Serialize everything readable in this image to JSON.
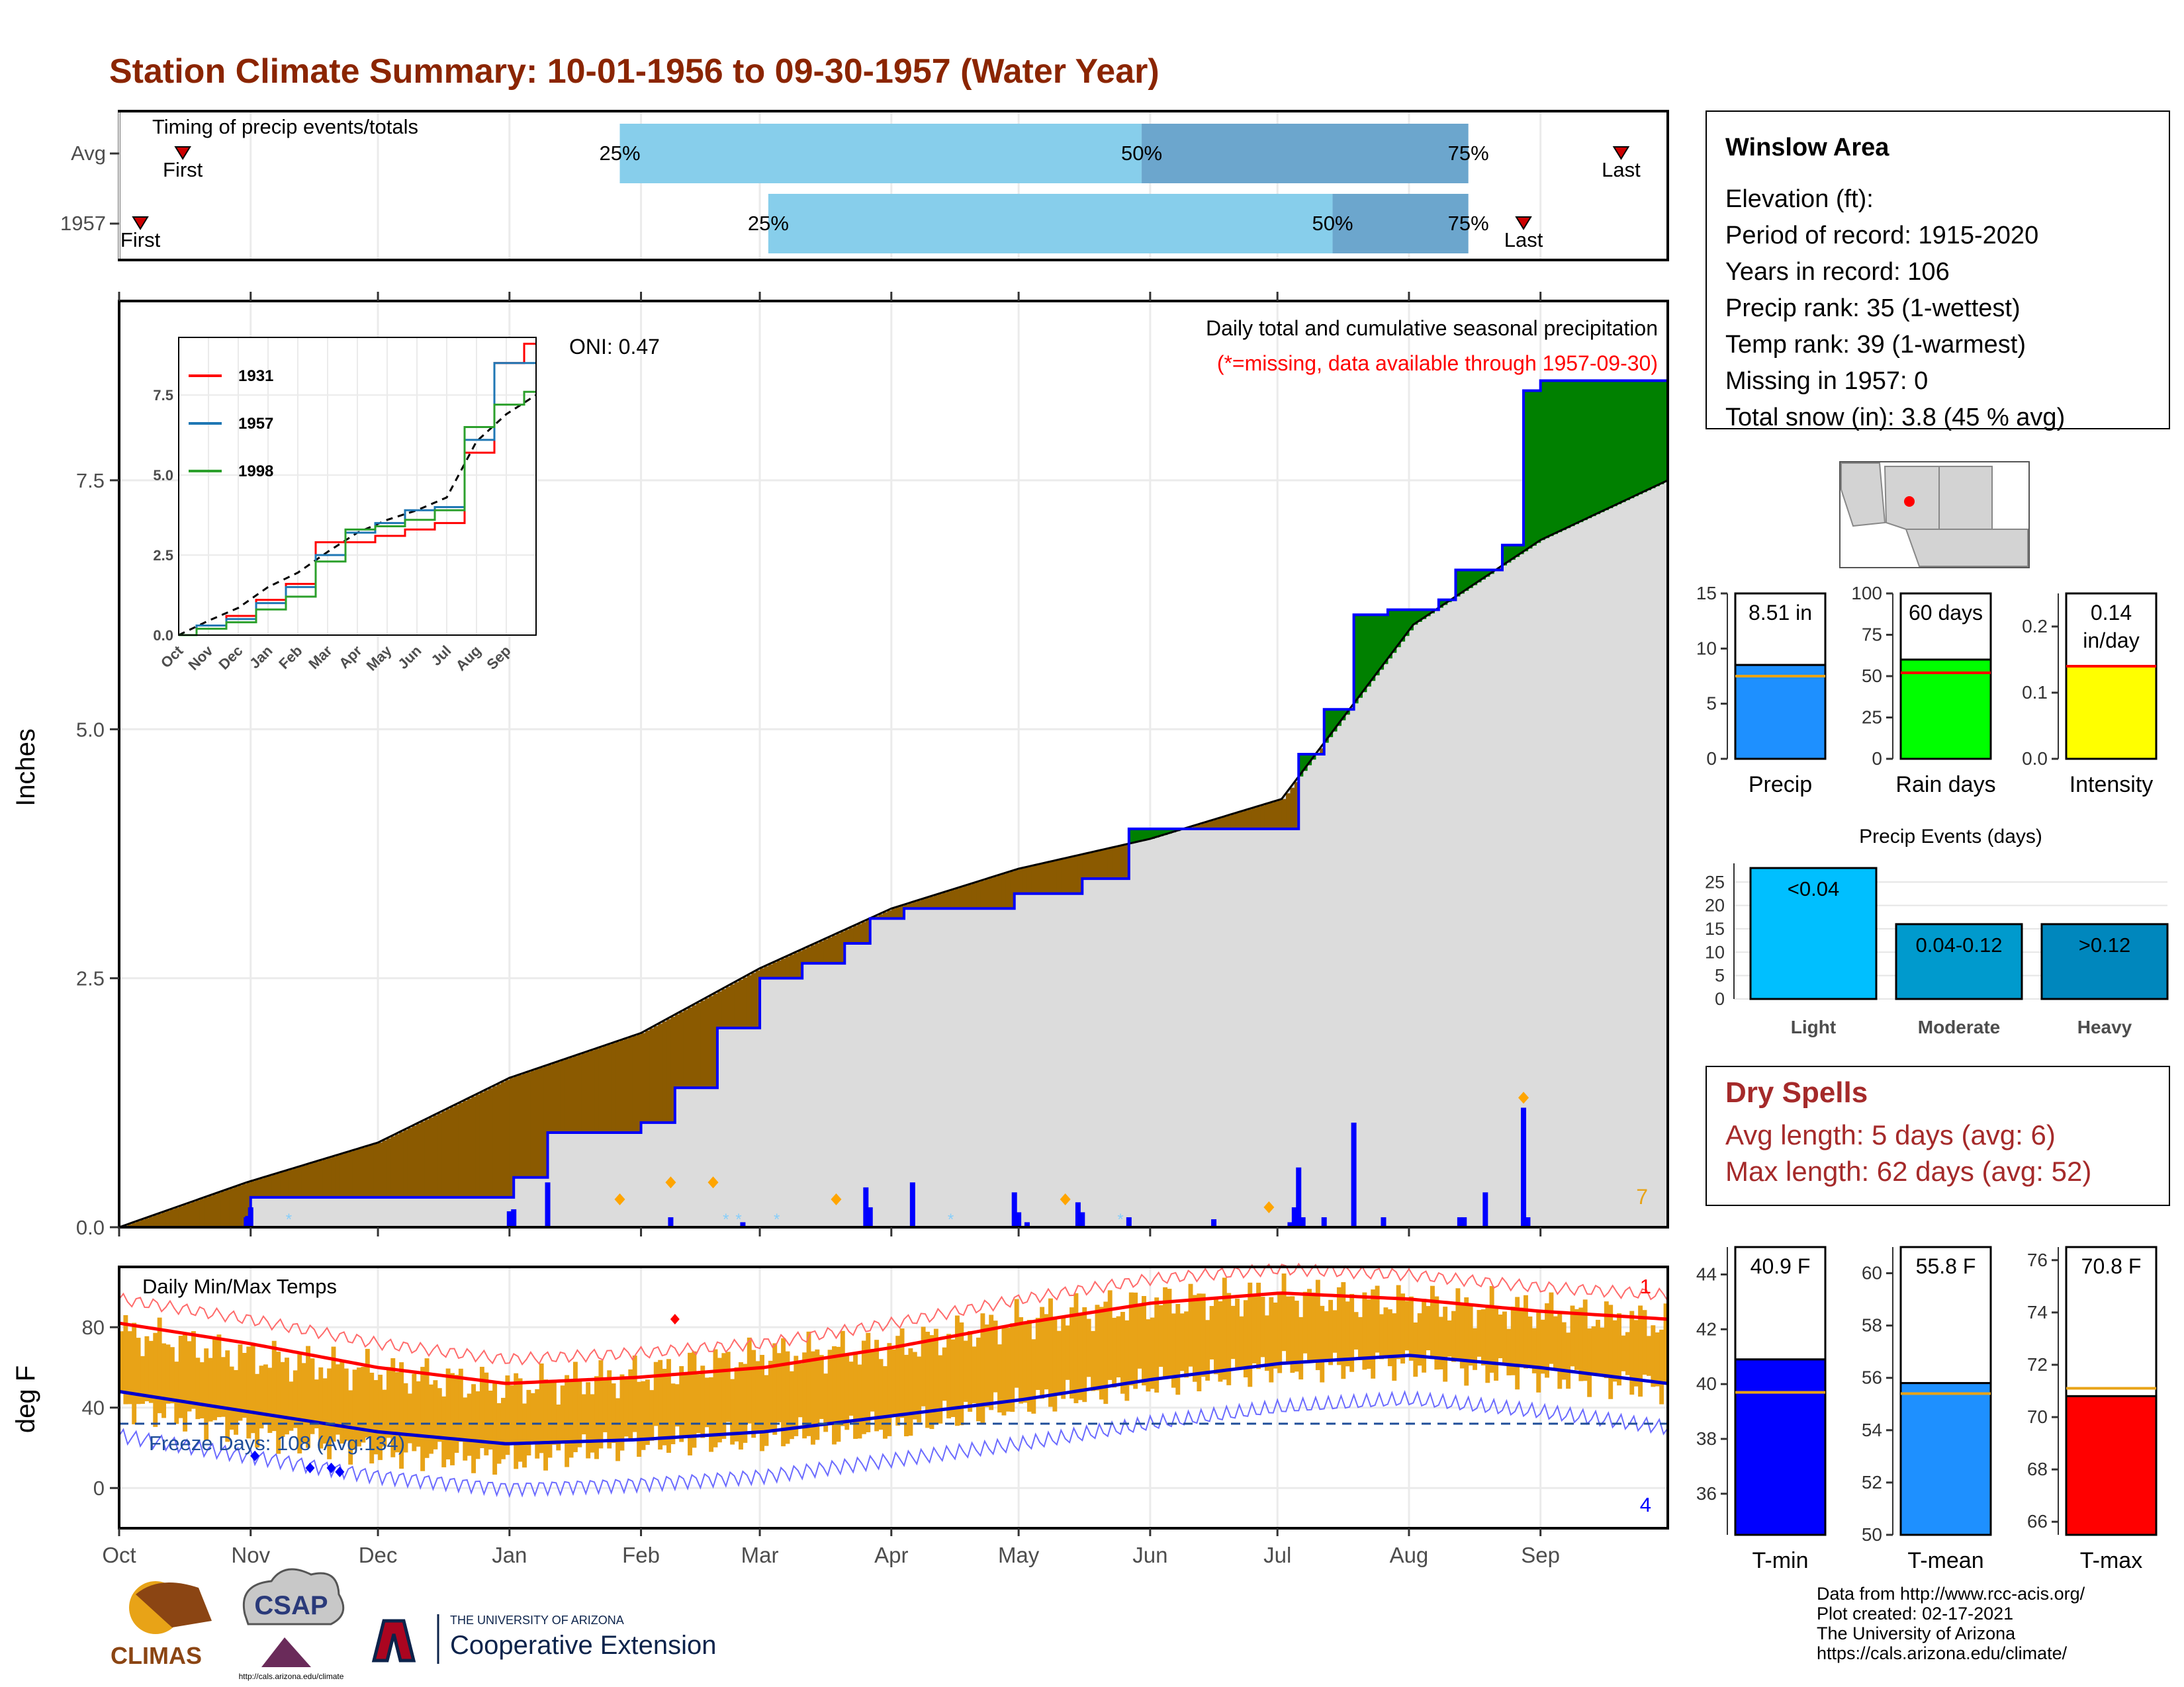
{
  "title": "Station Climate Summary: 10-01-1956 to 09-30-1957 (Water Year)",
  "months": [
    "Oct",
    "Nov",
    "Dec",
    "Jan",
    "Feb",
    "Mar",
    "Apr",
    "May",
    "Jun",
    "Jul",
    "Aug",
    "Sep"
  ],
  "colors": {
    "title": "#8B2500",
    "precip_bar": "#0000FF",
    "above": "#008000",
    "below": "#8B5A00",
    "climo": "#DCDCDC",
    "tmax": "#FF0000",
    "tmin": "#0000CD",
    "range": "#E8A317"
  },
  "timing": {
    "label": "Timing of precip events/totals",
    "rows": [
      {
        "name": "Avg",
        "first": 15,
        "q25": 118,
        "q50": 241,
        "q75": 318,
        "last": 354,
        "first_label": "First",
        "last_label": "Last"
      },
      {
        "name": "1957",
        "first": 5,
        "q25": 153,
        "q50": 286,
        "q75": 318,
        "last": 331,
        "first_label": "First",
        "last_label": "Last"
      }
    ],
    "pct_labels": [
      "25%",
      "50%",
      "75%"
    ]
  },
  "chart_data": [
    {
      "type": "area",
      "title": "Daily total and cumulative seasonal precipitation",
      "subtitle": "(*=missing, data available through 1957-09-30)",
      "ylabel": "Inches",
      "ylim": [
        0,
        9.3
      ],
      "yticks": [
        "0.0",
        "2.5",
        "5.0",
        "7.5"
      ],
      "oni": "ONI: 0.47",
      "corner_count": "7",
      "cumulative_1957": [
        [
          0,
          0
        ],
        [
          30,
          0.1
        ],
        [
          31,
          0.3
        ],
        [
          92,
          0.3
        ],
        [
          93,
          0.5
        ],
        [
          100,
          0.5
        ],
        [
          101,
          0.95
        ],
        [
          122,
          0.95
        ],
        [
          123,
          1.05
        ],
        [
          130,
          1.05
        ],
        [
          131,
          1.4
        ],
        [
          140,
          1.4
        ],
        [
          141,
          2.0
        ],
        [
          150,
          2.0
        ],
        [
          151,
          2.5
        ],
        [
          160,
          2.5
        ],
        [
          161,
          2.65
        ],
        [
          170,
          2.65
        ],
        [
          171,
          2.85
        ],
        [
          176,
          2.85
        ],
        [
          177,
          3.1
        ],
        [
          185,
          3.2
        ],
        [
          210,
          3.2
        ],
        [
          211,
          3.35
        ],
        [
          226,
          3.35
        ],
        [
          227,
          3.5
        ],
        [
          237,
          3.5
        ],
        [
          238,
          4.0
        ],
        [
          277,
          4.0
        ],
        [
          278,
          4.75
        ],
        [
          283,
          4.75
        ],
        [
          284,
          5.2
        ],
        [
          290,
          5.2
        ],
        [
          291,
          6.15
        ],
        [
          298,
          6.15
        ],
        [
          299,
          6.2
        ],
        [
          310,
          6.2
        ],
        [
          311,
          6.3
        ],
        [
          314,
          6.3
        ],
        [
          315,
          6.6
        ],
        [
          325,
          6.6
        ],
        [
          326,
          6.85
        ],
        [
          330,
          6.85
        ],
        [
          331,
          8.4
        ],
        [
          335,
          8.5
        ],
        [
          365,
          8.5
        ]
      ],
      "climo_cumulative": [
        [
          0,
          0
        ],
        [
          30,
          0.45
        ],
        [
          61,
          0.85
        ],
        [
          92,
          1.5
        ],
        [
          123,
          1.95
        ],
        [
          151,
          2.6
        ],
        [
          182,
          3.2
        ],
        [
          212,
          3.6
        ],
        [
          243,
          3.9
        ],
        [
          274,
          4.3
        ],
        [
          305,
          6.05
        ],
        [
          335,
          6.9
        ],
        [
          365,
          7.5
        ]
      ],
      "daily_precip": [
        [
          30,
          0.1
        ],
        [
          31,
          0.2
        ],
        [
          92,
          0.16
        ],
        [
          93,
          0.18
        ],
        [
          101,
          0.45
        ],
        [
          130,
          0.1
        ],
        [
          147,
          0.05
        ],
        [
          176,
          0.4
        ],
        [
          177,
          0.2
        ],
        [
          187,
          0.45
        ],
        [
          211,
          0.35
        ],
        [
          212,
          0.15
        ],
        [
          214,
          0.05
        ],
        [
          226,
          0.25
        ],
        [
          227,
          0.15
        ],
        [
          238,
          0.1
        ],
        [
          258,
          0.08
        ],
        [
          276,
          0.05
        ],
        [
          277,
          0.2
        ],
        [
          278,
          0.6
        ],
        [
          279,
          0.1
        ],
        [
          284,
          0.1
        ],
        [
          291,
          1.05
        ],
        [
          298,
          0.1
        ],
        [
          316,
          0.1
        ],
        [
          317,
          0.1
        ],
        [
          322,
          0.35
        ],
        [
          331,
          1.2
        ],
        [
          332,
          0.1
        ]
      ],
      "events_marked": [
        [
          118,
          0.28
        ],
        [
          130,
          0.45
        ],
        [
          140,
          0.45
        ],
        [
          169,
          0.28
        ],
        [
          223,
          0.28
        ],
        [
          271,
          0.2
        ],
        [
          331,
          1.3
        ]
      ],
      "inset": {
        "yticks": [
          "0.0",
          "2.5",
          "5.0",
          "7.5"
        ],
        "xticks": [
          "Oct",
          "Nov",
          "Dec",
          "Jan",
          "Feb",
          "Mar",
          "Apr",
          "May",
          "Jun",
          "Jul",
          "Aug",
          "Sep"
        ],
        "series": [
          {
            "name": "1931",
            "color": "#FF0000",
            "values": [
              0,
              0.3,
              0.6,
              1.1,
              1.6,
              2.9,
              2.9,
              3.1,
              3.3,
              3.5,
              5.7,
              8.5,
              9.1
            ]
          },
          {
            "name": "1957",
            "color": "#1F77B4",
            "values": [
              0,
              0.3,
              0.5,
              1.0,
              1.5,
              2.5,
              3.2,
              3.5,
              3.9,
              4.0,
              6.1,
              8.5,
              8.5
            ]
          },
          {
            "name": "1998",
            "color": "#2CA02C",
            "values": [
              0,
              0.2,
              0.4,
              0.8,
              1.2,
              2.3,
              3.3,
              3.4,
              3.6,
              3.9,
              6.5,
              7.2,
              7.6
            ]
          }
        ],
        "climo": [
          0,
          0.45,
          0.85,
          1.5,
          1.95,
          2.6,
          3.2,
          3.6,
          3.9,
          4.3,
          6.05,
          6.9,
          7.5
        ]
      }
    },
    {
      "type": "line",
      "title": "Daily Min/Max Temps",
      "ylabel": "deg F",
      "ylim": [
        -20,
        110
      ],
      "yticks": [
        "0",
        "40",
        "80"
      ],
      "freeze_label": "Freeze Days: 108 (Avg:134)",
      "freeze_line": 32,
      "record_high_count": "1",
      "record_low_count": "4",
      "avg_tmax": [
        82,
        72,
        60,
        52,
        55,
        60,
        70,
        82,
        92,
        97,
        94,
        88,
        84
      ],
      "avg_tmin": [
        48,
        38,
        28,
        22,
        24,
        28,
        36,
        44,
        54,
        62,
        66,
        60,
        52
      ],
      "daily_range_tmax": [
        78,
        65,
        58,
        50,
        56,
        66,
        70,
        84,
        92,
        96,
        92,
        88,
        82
      ],
      "daily_range_tmin": [
        42,
        28,
        18,
        14,
        22,
        25,
        30,
        42,
        52,
        60,
        62,
        56,
        50
      ]
    },
    {
      "type": "bar",
      "categories": [
        "Precip",
        "Rain days",
        "Intensity"
      ],
      "values": [
        8.51,
        60,
        0.14
      ],
      "averages": [
        7.5,
        52,
        0.14
      ],
      "labels": [
        "8.51 in",
        "60 days",
        "0.14 in/day"
      ],
      "yticks": [
        [
          "0",
          "5",
          "10",
          "15"
        ],
        [
          "0",
          "25",
          "50",
          "75",
          "100"
        ],
        [
          "0.0",
          "0.1",
          "0.2"
        ]
      ],
      "ylims": [
        [
          0,
          15
        ],
        [
          0,
          100
        ],
        [
          0,
          0.25
        ]
      ],
      "colors": [
        "#1E90FF",
        "#00FF00",
        "#FFFF00"
      ]
    },
    {
      "type": "bar",
      "title": "Precip Events (days)",
      "categories": [
        "Light",
        "Moderate",
        "Heavy"
      ],
      "values": [
        28,
        16,
        16
      ],
      "bar_labels": [
        "<0.04",
        "0.04-0.12",
        ">0.12"
      ],
      "yticks": [
        "0",
        "5",
        "10",
        "15",
        "20",
        "25"
      ],
      "ylim": [
        0,
        29
      ],
      "colors": [
        "#00BFFF",
        "#009ACD",
        "#0087BD"
      ]
    },
    {
      "type": "bar",
      "categories": [
        "T-min",
        "T-mean",
        "T-max"
      ],
      "values": [
        40.9,
        55.8,
        70.8
      ],
      "averages": [
        39.7,
        55.4,
        71.1
      ],
      "labels": [
        "40.9 F",
        "55.8 F",
        "70.8 F"
      ],
      "yticks": [
        [
          "36",
          "38",
          "40",
          "42",
          "44"
        ],
        [
          "50",
          "52",
          "54",
          "56",
          "58",
          "60"
        ],
        [
          "66",
          "68",
          "70",
          "72",
          "74",
          "76"
        ]
      ],
      "ylims": [
        [
          34.5,
          45
        ],
        [
          50,
          61
        ],
        [
          65.5,
          76.5
        ]
      ],
      "colors": [
        "#0000FF",
        "#1E90FF",
        "#FF0000"
      ]
    }
  ],
  "station": {
    "name": "Winslow Area",
    "lines": [
      "Elevation (ft):",
      "Period of record: 1915-2020",
      "Years in record: 106",
      "Precip rank: 35 (1-wettest)",
      "Temp rank: 39 (1-warmest)",
      "Missing in 1957: 0",
      "Total snow (in): 3.8 (45 % avg)"
    ]
  },
  "dry_spells": {
    "title": "Dry Spells",
    "lines": [
      "Avg length: 5 days (avg: 6)",
      "Max length: 62 days (avg: 52)"
    ]
  },
  "footer": {
    "lines": [
      "Data from http://www.rcc-acis.org/",
      "Plot created: 02-17-2021",
      "The University of Arizona",
      "https://cals.arizona.edu/climate/"
    ],
    "logos": {
      "climas": "CLIMAS",
      "csap": "CSAP",
      "csap_url": "http://cals.arizona.edu/climate",
      "ua_top": "THE UNIVERSITY OF ARIZONA",
      "ua_bottom": "Cooperative Extension"
    }
  }
}
